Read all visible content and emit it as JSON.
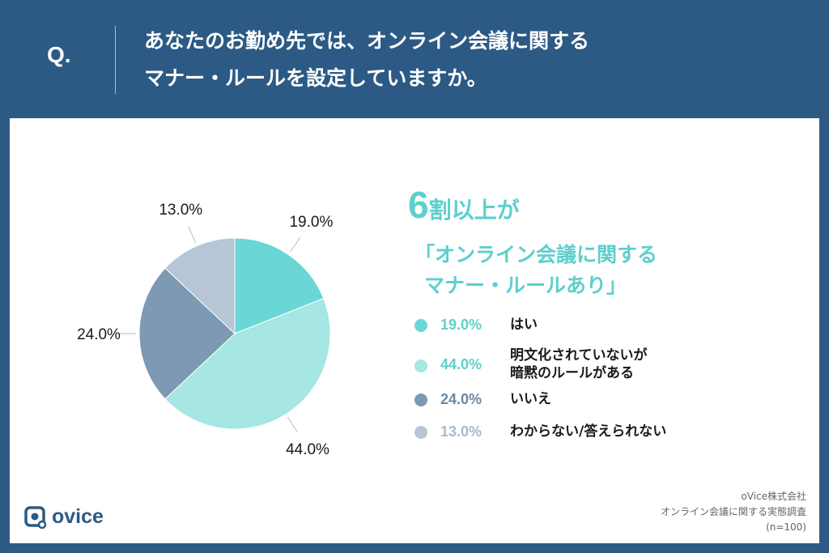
{
  "question": {
    "label": "Q.",
    "line1": "あなたのお勤め先では、オンライン会議に関する",
    "line2": "マナー・ルールを設定していますか。"
  },
  "headline": {
    "big": "6",
    "rest": "割以上が",
    "line2": "「オンライン会議に関する",
    "line3": "マナー・ルールあり」"
  },
  "chart_data": {
    "type": "pie",
    "start_angle_deg": 0,
    "direction": "clockwise",
    "slices": [
      {
        "label_lines": [
          "はい"
        ],
        "value": 19.0,
        "value_label": "19.0%",
        "color": "#6ad6d6"
      },
      {
        "label_lines": [
          "明文化されていないが",
          "暗黙のルールがある"
        ],
        "value": 44.0,
        "value_label": "44.0%",
        "color": "#a6e6e3"
      },
      {
        "label_lines": [
          "いいえ"
        ],
        "value": 24.0,
        "value_label": "24.0%",
        "color": "#7d99b3"
      },
      {
        "label_lines": [
          "わからない/答えられない"
        ],
        "value": 13.0,
        "value_label": "13.0%",
        "color": "#b6c6d6"
      }
    ],
    "legend_placement": "right"
  },
  "colors": {
    "background": "#2c5a85",
    "panel": "#ffffff",
    "accent": "#5ecfcc",
    "legend_pct_colors": [
      "#5ecfcc",
      "#5ecfcc",
      "#6c87a1",
      "#a9b9c9"
    ]
  },
  "brand": {
    "logo_text": "ovice",
    "icon": "ovice-logo-icon"
  },
  "source": {
    "line1": "oVice株式会社",
    "line2": "オンライン会議に関する実態調査",
    "line3": "(n=100)"
  }
}
